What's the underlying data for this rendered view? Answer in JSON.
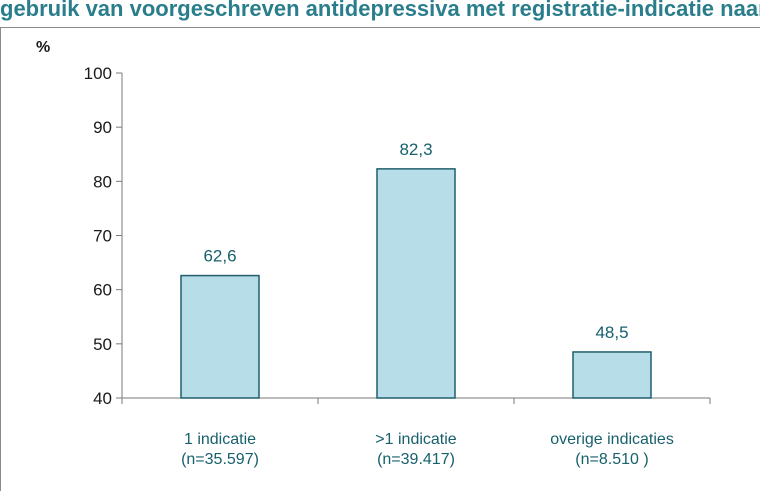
{
  "title": "gebruik van voorgeschreven antidepressiva met registratie-indicatie naar registratie-indicatiecategorie",
  "colors": {
    "bar_fill": "#b7dde8",
    "bar_stroke": "#1f5f6b",
    "title": "#2a7e8c",
    "label": "#17606d"
  },
  "chart_data": {
    "type": "bar",
    "title": "",
    "ylabel": "%",
    "xlabel": "",
    "ylim": [
      40,
      100
    ],
    "yticks": [
      40,
      50,
      60,
      70,
      80,
      90,
      100
    ],
    "grid": false,
    "categories": [
      {
        "line1": "1 indicatie",
        "line2": "(n=35.597)"
      },
      {
        "line1": ">1 indicatie",
        "line2": "(n=39.417)"
      },
      {
        "line1": "overige indicaties",
        "line2": "(n=8.510 )"
      }
    ],
    "values": [
      62.6,
      82.3,
      48.5
    ],
    "value_labels": [
      "62,6",
      "82,3",
      "48,5"
    ]
  }
}
